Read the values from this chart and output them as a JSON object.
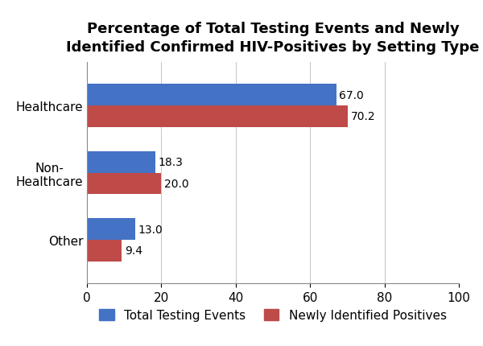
{
  "title": "Percentage of Total Testing Events and Newly\nIdentified Confirmed HIV-Positives by Setting Type",
  "categories": [
    "Other",
    "Non-\nHealthcare",
    "Healthcare"
  ],
  "total_testing": [
    13.0,
    18.3,
    67.0
  ],
  "newly_identified": [
    9.4,
    20.0,
    70.2
  ],
  "bar_color_blue": "#4472C4",
  "bar_color_red": "#BE4B48",
  "xlim": [
    0,
    100
  ],
  "xticks": [
    0,
    20,
    40,
    60,
    80,
    100
  ],
  "bar_height": 0.32,
  "legend_labels": [
    "Total Testing Events",
    "Newly Identified Positives"
  ],
  "background_color": "#FFFFFF",
  "title_fontsize": 13,
  "label_fontsize": 11,
  "tick_fontsize": 11,
  "annotation_fontsize": 10
}
